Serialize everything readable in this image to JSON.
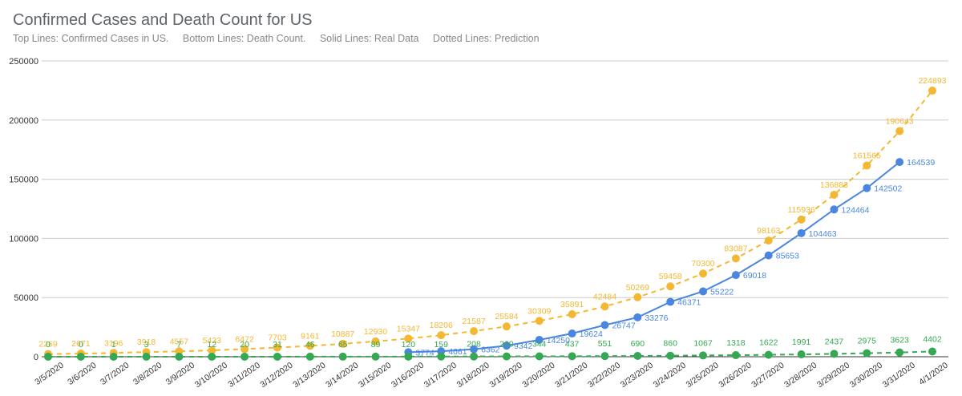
{
  "chart_data": {
    "type": "line",
    "title": "Confirmed Cases and Death Count for US",
    "subtitle": "Top Lines: Confirmed Cases in US.     Bottom Lines: Death Count.     Solid Lines: Real Data     Dotted Lines: Prediction",
    "xlabel": "",
    "ylabel": "",
    "ylim": [
      0,
      250000
    ],
    "yticks": [
      0,
      50000,
      100000,
      150000,
      200000,
      250000
    ],
    "grid": true,
    "legend": "none",
    "categories": [
      "3/5/2020",
      "3/6/2020",
      "3/7/2020",
      "3/8/2020",
      "3/9/2020",
      "3/10/2020",
      "3/11/2020",
      "3/12/2020",
      "3/13/2020",
      "3/14/2020",
      "3/15/2020",
      "3/16/2020",
      "3/17/2020",
      "3/18/2020",
      "3/19/2020",
      "3/20/2020",
      "3/21/2020",
      "3/22/2020",
      "3/23/2020",
      "3/24/2020",
      "3/25/2020",
      "3/26/2020",
      "3/27/2020",
      "3/28/2020",
      "3/29/2020",
      "3/30/2020",
      "3/31/2020",
      "4/1/2020"
    ],
    "series": [
      {
        "name": "",
        "color": "#f4b731",
        "style": "dashed",
        "values": [
          2269,
          2671,
          3196,
          3918,
          4557,
          5433,
          6472,
          7703,
          9161,
          10887,
          12930,
          15347,
          18206,
          21587,
          25584,
          30309,
          35891,
          42484,
          50269,
          59458,
          70300,
          83087,
          98163,
          115936,
          136883,
          161565,
          190643,
          224893
        ],
        "labels": [
          "2269",
          "2671",
          "3196",
          "3918",
          "4557",
          "5433",
          "6472",
          "7703",
          "9161",
          "10887",
          "12930",
          "15347",
          "18206",
          "21587",
          "25584",
          "30309",
          "35891",
          "42484",
          "50269",
          "59458",
          "70300",
          "83087",
          "98163",
          "115936",
          "136883",
          "161565",
          "190643",
          "224893"
        ]
      },
      {
        "name": "",
        "color": "#4a86e0",
        "style": "solid",
        "values": [
          null,
          null,
          null,
          null,
          null,
          null,
          null,
          null,
          null,
          null,
          null,
          3774,
          4661,
          6362,
          9342,
          14250,
          19624,
          26747,
          33276,
          46371,
          55222,
          69018,
          85653,
          104463,
          124464,
          142502,
          164539,
          null
        ],
        "labels": [
          "",
          "",
          "",
          "",
          "",
          "",
          "",
          "",
          "",
          "",
          "",
          "3774",
          "4661",
          "6362",
          "9342",
          "14250",
          "19624",
          "26747",
          "33276",
          "46371",
          "55222",
          "69018",
          "85653",
          "104463",
          "124464",
          "142502",
          "164539",
          ""
        ]
      },
      {
        "name": "",
        "color": "#34a853",
        "style": "dashed",
        "values": [
          0,
          0,
          1,
          3,
          7,
          12,
          20,
          31,
          46,
          65,
          89,
          120,
          159,
          208,
          269,
          344,
          437,
          551,
          690,
          860,
          1067,
          1318,
          1622,
          1991,
          2437,
          2975,
          3623,
          4402
        ],
        "labels": [
          "0",
          "0",
          "1",
          "3",
          "7",
          "12",
          "20",
          "31",
          "46",
          "65",
          "89",
          "120",
          "159",
          "208",
          "269",
          "344",
          "437",
          "551",
          "690",
          "860",
          "1067",
          "1318",
          "1622",
          "1991",
          "2437",
          "2975",
          "3623",
          "4402"
        ]
      }
    ]
  }
}
